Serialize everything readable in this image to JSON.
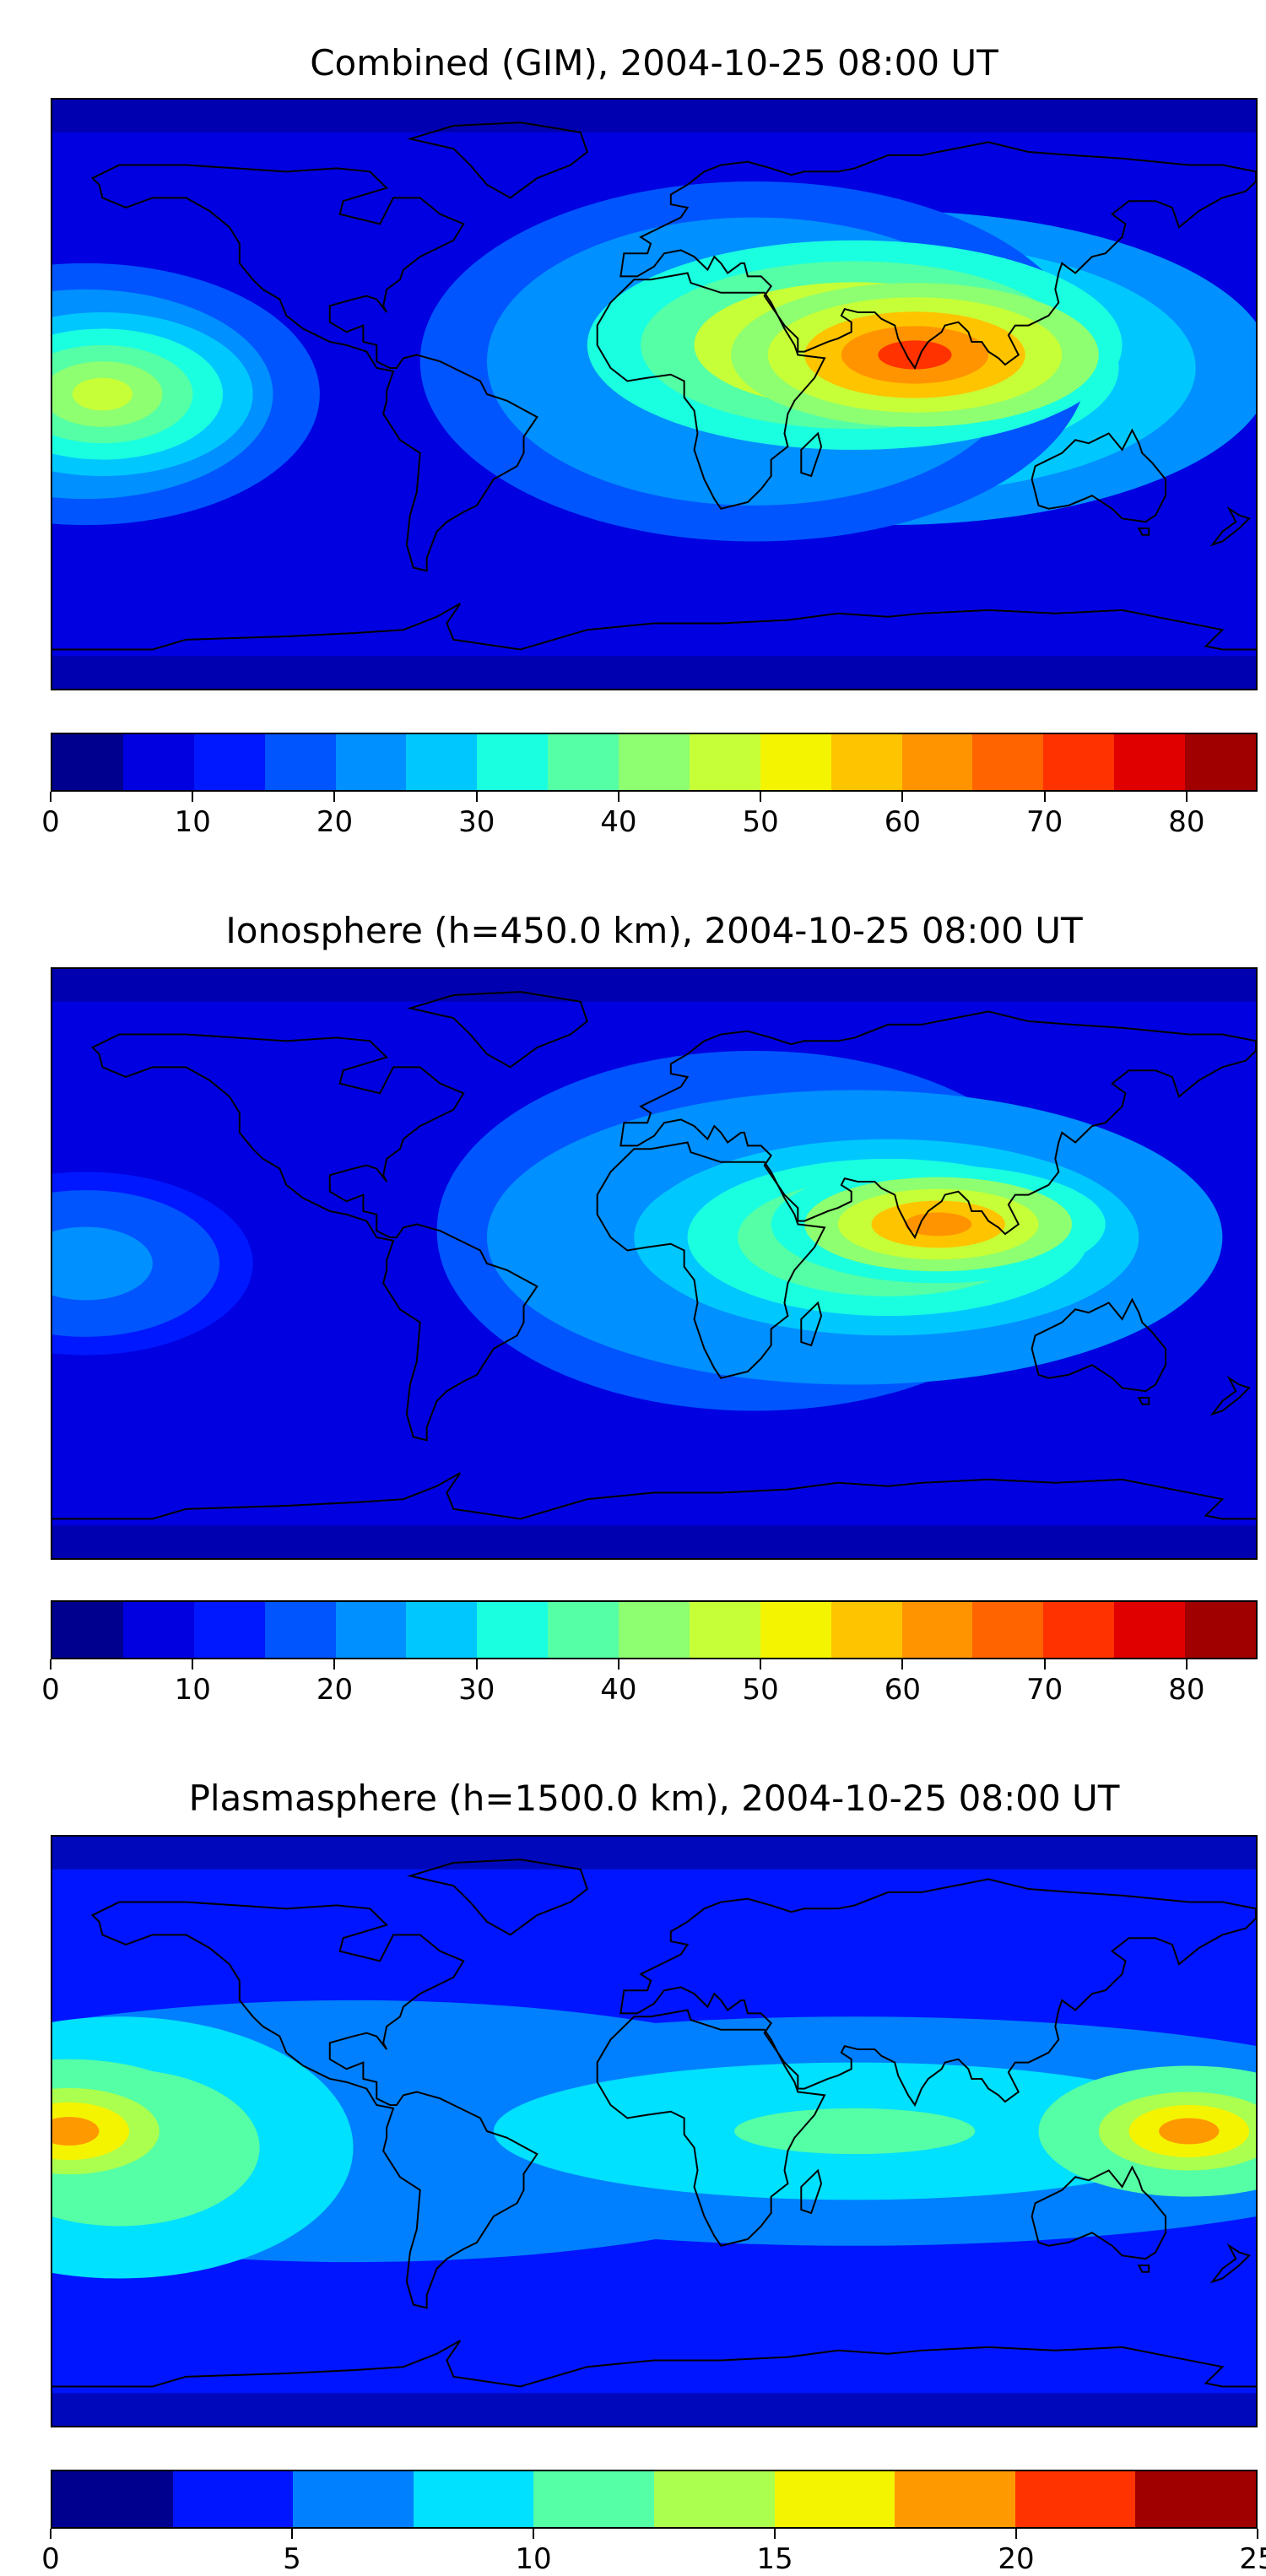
{
  "chart_data": [
    {
      "type": "heatmap",
      "title": "Combined (GIM), 2004-10-25 08:00 UT",
      "xlabel": "",
      "ylabel": "",
      "colorbar": {
        "min": 0,
        "max": 85,
        "step": 5,
        "ticks": [
          0,
          10,
          20,
          30,
          40,
          50,
          60,
          70,
          80
        ]
      },
      "colors": [
        "#00008f",
        "#0000e0",
        "#0018ff",
        "#0055ff",
        "#0090ff",
        "#00c8ff",
        "#1affe0",
        "#55ffa5",
        "#8dff70",
        "#c6ff38",
        "#f4f400",
        "#ffc400",
        "#ff9400",
        "#ff6400",
        "#ff3200",
        "#e00000",
        "#a00000"
      ],
      "blobs": [
        {
          "lon": 78,
          "lat": 12,
          "rx": 55,
          "ry": 22,
          "level": 72
        },
        {
          "lon": 60,
          "lat": 15,
          "rx": 80,
          "ry": 32,
          "level": 58
        },
        {
          "lon": 70,
          "lat": 8,
          "rx": 115,
          "ry": 48,
          "level": 42
        },
        {
          "lon": 30,
          "lat": 10,
          "rx": 100,
          "ry": 55,
          "level": 32
        },
        {
          "lon": -165,
          "lat": 0,
          "rx": 45,
          "ry": 25,
          "level": 45
        },
        {
          "lon": -170,
          "lat": 0,
          "rx": 70,
          "ry": 40,
          "level": 32
        }
      ]
    },
    {
      "type": "heatmap",
      "title": "Ionosphere  (h=450.0 km), 2004-10-25 08:00 UT",
      "xlabel": "",
      "ylabel": "",
      "colorbar": {
        "min": 0,
        "max": 85,
        "step": 5,
        "ticks": [
          0,
          10,
          20,
          30,
          40,
          50,
          60,
          70,
          80
        ]
      },
      "colors": [
        "#00008f",
        "#0000e0",
        "#0018ff",
        "#0055ff",
        "#0090ff",
        "#00c8ff",
        "#1affe0",
        "#55ffa5",
        "#8dff70",
        "#c6ff38",
        "#f4f400",
        "#ffc400",
        "#ff9400",
        "#ff6400",
        "#ff3200",
        "#e00000",
        "#a00000"
      ],
      "blobs": [
        {
          "lon": 85,
          "lat": 12,
          "rx": 50,
          "ry": 18,
          "level": 62
        },
        {
          "lon": 70,
          "lat": 8,
          "rx": 75,
          "ry": 30,
          "level": 50
        },
        {
          "lon": 60,
          "lat": 8,
          "rx": 110,
          "ry": 45,
          "level": 36
        },
        {
          "lon": 30,
          "lat": 10,
          "rx": 95,
          "ry": 55,
          "level": 28
        },
        {
          "lon": -170,
          "lat": 0,
          "rx": 50,
          "ry": 28,
          "level": 24
        }
      ]
    },
    {
      "type": "heatmap",
      "title": "Plasmasphere (h=1500.0 km), 2004-10-25 08:00 UT",
      "xlabel": "",
      "ylabel": "",
      "colorbar": {
        "min": 0,
        "max": 25,
        "step": 2.5,
        "ticks": [
          0,
          5,
          10,
          15,
          20,
          25
        ]
      },
      "colors": [
        "#00008f",
        "#0015ff",
        "#0080ff",
        "#00e0ff",
        "#55ffa5",
        "#aaff4f",
        "#f4f400",
        "#ff9900",
        "#ff3300",
        "#a00000"
      ],
      "blobs": [
        {
          "lon": -175,
          "lat": 0,
          "rx": 45,
          "ry": 22,
          "level": 18
        },
        {
          "lon": -160,
          "lat": -5,
          "rx": 70,
          "ry": 40,
          "level": 14
        },
        {
          "lon": 160,
          "lat": 0,
          "rx": 45,
          "ry": 20,
          "level": 18
        },
        {
          "lon": 60,
          "lat": 0,
          "rx": 180,
          "ry": 35,
          "level": 10
        },
        {
          "lon": -90,
          "lat": 0,
          "rx": 200,
          "ry": 50,
          "level": 8
        }
      ]
    }
  ]
}
